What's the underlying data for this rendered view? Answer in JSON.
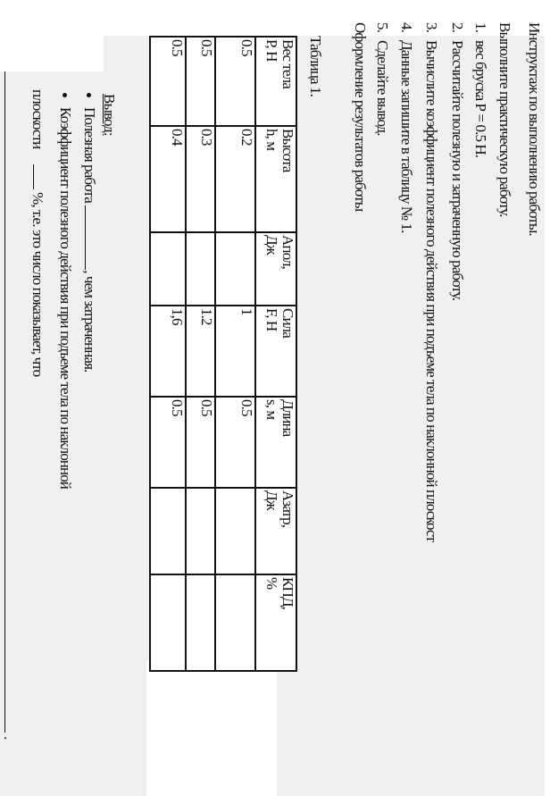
{
  "instructions": {
    "title": "Инструктаж по выполнению работы.",
    "intro": "Выполните практическую работу.",
    "steps": [
      {
        "num": "1.",
        "text": "вес бруска Р = 0.5 Н."
      },
      {
        "num": "2.",
        "text": "Рассчитайте полезную и затраченную работу."
      },
      {
        "num": "3.",
        "text": "Вычислите коэффициент полезного действия при подъеме тела по наклонной плоскост"
      },
      {
        "num": "4.",
        "text": "Данные запишите в таблицу № 1."
      },
      {
        "num": "5.",
        "text": "Сделайте вывод."
      }
    ],
    "results_heading": "Оформление результатов работы",
    "table_caption": "Таблица 1."
  },
  "table": {
    "headers": [
      [
        "Вес тела",
        "Р, Н"
      ],
      [
        "Высота",
        "h, м"
      ],
      [
        "Апол,",
        "Дж"
      ],
      [
        "Сила",
        "F, Н"
      ],
      [
        "Длина",
        "s, м"
      ],
      [
        "Азатр,",
        "Дж"
      ],
      [
        "КПД,",
        "%"
      ]
    ],
    "rows": [
      [
        "0.5",
        "0.2",
        "",
        "1",
        "0.5",
        "",
        ""
      ],
      [
        "0.5",
        "0.3",
        "",
        "1.2",
        "0.5",
        "",
        ""
      ],
      [
        "0.5",
        "0.4",
        "",
        "1,6",
        "0.5",
        "",
        ""
      ]
    ]
  },
  "conclusion": {
    "heading": "Вывод:",
    "bullet1_a": "Полезная работа",
    "bullet1_b": ", чем затраченная.",
    "bullet2_a": "Коэффициент полезного действия при подъеме тела по наклонной",
    "bullet2_b": "плоскости",
    "bullet2_c": "%, т.е. это число показывает, что",
    "end": "."
  }
}
